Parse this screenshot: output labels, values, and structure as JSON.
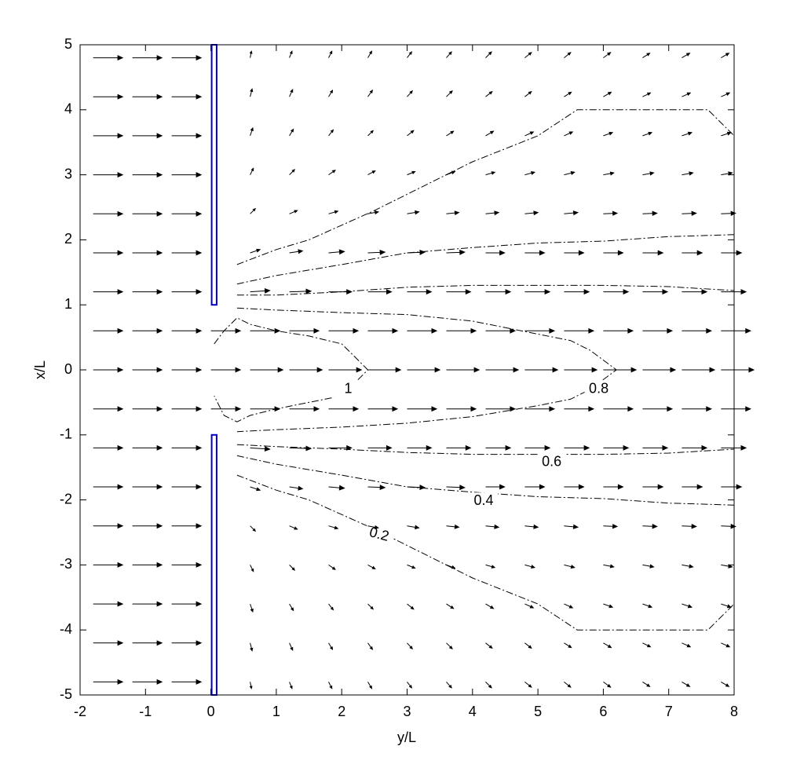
{
  "chart_data": {
    "type": "quiver",
    "xlabel": "y/L",
    "ylabel": "x/L",
    "xlim": [
      -2,
      8
    ],
    "ylim": [
      -5,
      5
    ],
    "xticks": [
      -2,
      -1,
      0,
      1,
      2,
      3,
      4,
      5,
      6,
      7,
      8
    ],
    "yticks": [
      -5,
      -4,
      -3,
      -2,
      -1,
      0,
      1,
      2,
      3,
      4,
      5
    ],
    "arrow_color": "#000000",
    "x": [
      -1.8,
      -1.2,
      -0.6,
      0,
      0.6,
      1.2,
      1.8,
      2.4,
      3.0,
      3.6,
      4.2,
      4.8,
      5.4,
      6.0,
      6.6,
      7.2,
      7.8
    ],
    "y": [
      4.8,
      4.2,
      3.6,
      3.0,
      2.4,
      1.8,
      1.2,
      0.6,
      0,
      -0.6,
      -1.2,
      -1.8,
      -2.4,
      -3.0,
      -3.6,
      -4.2,
      -4.8
    ],
    "u": [
      [
        0.45,
        0.45,
        0.45,
        0,
        0.02,
        0.04,
        0.05,
        0.06,
        0.07,
        0.08,
        0.09,
        0.1,
        0.1,
        0.11,
        0.11,
        0.12,
        0.12
      ],
      [
        0.45,
        0.45,
        0.45,
        0,
        0.03,
        0.05,
        0.06,
        0.07,
        0.08,
        0.09,
        0.1,
        0.1,
        0.11,
        0.12,
        0.12,
        0.13,
        0.13
      ],
      [
        0.45,
        0.45,
        0.45,
        0,
        0.04,
        0.06,
        0.07,
        0.08,
        0.1,
        0.11,
        0.12,
        0.13,
        0.13,
        0.14,
        0.14,
        0.15,
        0.15
      ],
      [
        0.45,
        0.45,
        0.45,
        0,
        0.05,
        0.08,
        0.1,
        0.11,
        0.12,
        0.13,
        0.14,
        0.15,
        0.16,
        0.16,
        0.17,
        0.17,
        0.17
      ],
      [
        0.45,
        0.45,
        0.45,
        0,
        0.08,
        0.12,
        0.14,
        0.16,
        0.18,
        0.19,
        0.2,
        0.2,
        0.21,
        0.21,
        0.22,
        0.22,
        0.22
      ],
      [
        0.45,
        0.45,
        0.45,
        0,
        0.15,
        0.2,
        0.24,
        0.26,
        0.27,
        0.28,
        0.29,
        0.3,
        0.3,
        0.3,
        0.31,
        0.31,
        0.31
      ],
      [
        0.45,
        0.45,
        0.45,
        0,
        0.3,
        0.33,
        0.35,
        0.36,
        0.37,
        0.37,
        0.38,
        0.38,
        0.38,
        0.38,
        0.38,
        0.38,
        0.38
      ],
      [
        0.45,
        0.45,
        0.45,
        0.45,
        0.45,
        0.45,
        0.45,
        0.45,
        0.45,
        0.45,
        0.45,
        0.45,
        0.45,
        0.45,
        0.45,
        0.45,
        0.45
      ],
      [
        0.45,
        0.45,
        0.45,
        0.45,
        0.5,
        0.5,
        0.5,
        0.5,
        0.5,
        0.5,
        0.5,
        0.5,
        0.5,
        0.5,
        0.5,
        0.5,
        0.5
      ],
      [
        0.45,
        0.45,
        0.45,
        0.45,
        0.45,
        0.45,
        0.45,
        0.45,
        0.45,
        0.45,
        0.45,
        0.45,
        0.45,
        0.45,
        0.45,
        0.45,
        0.45
      ],
      [
        0.45,
        0.45,
        0.45,
        0,
        0.3,
        0.33,
        0.35,
        0.36,
        0.37,
        0.37,
        0.38,
        0.38,
        0.38,
        0.38,
        0.38,
        0.38,
        0.38
      ],
      [
        0.45,
        0.45,
        0.45,
        0,
        0.15,
        0.2,
        0.24,
        0.26,
        0.27,
        0.28,
        0.29,
        0.3,
        0.3,
        0.3,
        0.31,
        0.31,
        0.31
      ],
      [
        0.45,
        0.45,
        0.45,
        0,
        0.08,
        0.12,
        0.14,
        0.16,
        0.18,
        0.19,
        0.2,
        0.2,
        0.21,
        0.21,
        0.22,
        0.22,
        0.22
      ],
      [
        0.45,
        0.45,
        0.45,
        0,
        0.05,
        0.08,
        0.1,
        0.11,
        0.12,
        0.13,
        0.14,
        0.15,
        0.16,
        0.16,
        0.17,
        0.17,
        0.17
      ],
      [
        0.45,
        0.45,
        0.45,
        0,
        0.04,
        0.06,
        0.07,
        0.08,
        0.1,
        0.11,
        0.12,
        0.13,
        0.13,
        0.14,
        0.14,
        0.15,
        0.15
      ],
      [
        0.45,
        0.45,
        0.45,
        0,
        0.03,
        0.05,
        0.06,
        0.07,
        0.08,
        0.09,
        0.1,
        0.1,
        0.11,
        0.12,
        0.12,
        0.13,
        0.13
      ],
      [
        0.45,
        0.45,
        0.45,
        0,
        0.02,
        0.04,
        0.05,
        0.06,
        0.07,
        0.08,
        0.09,
        0.1,
        0.1,
        0.11,
        0.11,
        0.12,
        0.12
      ]
    ],
    "v": [
      [
        0,
        0,
        0,
        0,
        0.1,
        0.1,
        0.1,
        0.1,
        0.09,
        0.09,
        0.09,
        0.08,
        0.08,
        0.08,
        0.07,
        0.07,
        0.07
      ],
      [
        0,
        0,
        0,
        0,
        0.12,
        0.11,
        0.1,
        0.1,
        0.09,
        0.09,
        0.08,
        0.08,
        0.07,
        0.07,
        0.06,
        0.06,
        0.06
      ],
      [
        0,
        0,
        0,
        0,
        0.12,
        0.1,
        0.09,
        0.08,
        0.08,
        0.07,
        0.07,
        0.06,
        0.06,
        0.05,
        0.05,
        0.05,
        0.05
      ],
      [
        0,
        0,
        0,
        0,
        0.1,
        0.08,
        0.07,
        0.06,
        0.05,
        0.05,
        0.04,
        0.04,
        0.04,
        0.03,
        0.03,
        0.03,
        0.03
      ],
      [
        0,
        0,
        0,
        0,
        0.08,
        0.05,
        0.04,
        0.03,
        0.03,
        0.02,
        0.02,
        0.02,
        0.02,
        0.01,
        0.01,
        0.01,
        0.01
      ],
      [
        0,
        0,
        0,
        0,
        0.05,
        0.03,
        0.02,
        0.01,
        0.01,
        0.01,
        0,
        0,
        0,
        0,
        0,
        0,
        0
      ],
      [
        0,
        0,
        0,
        0,
        0.02,
        0.01,
        0,
        0,
        0,
        0,
        0,
        0,
        0,
        0,
        0,
        0,
        0
      ],
      [
        0,
        0,
        0,
        0,
        0,
        0,
        0,
        0,
        0,
        0,
        0,
        0,
        0,
        0,
        0,
        0,
        0
      ],
      [
        0,
        0,
        0,
        0,
        0,
        0,
        0,
        0,
        0,
        0,
        0,
        0,
        0,
        0,
        0,
        0,
        0
      ],
      [
        0,
        0,
        0,
        0,
        0,
        0,
        0,
        0,
        0,
        0,
        0,
        0,
        0,
        0,
        0,
        0,
        0
      ],
      [
        0,
        0,
        0,
        0,
        -0.02,
        -0.01,
        0,
        0,
        0,
        0,
        0,
        0,
        0,
        0,
        0,
        0,
        0
      ],
      [
        0,
        0,
        0,
        0,
        -0.05,
        -0.03,
        -0.02,
        -0.01,
        -0.01,
        -0.01,
        0,
        0,
        0,
        0,
        0,
        0,
        0
      ],
      [
        0,
        0,
        0,
        0,
        -0.08,
        -0.05,
        -0.04,
        -0.03,
        -0.03,
        -0.02,
        -0.02,
        -0.02,
        -0.02,
        -0.01,
        -0.01,
        -0.01,
        -0.01
      ],
      [
        0,
        0,
        0,
        0,
        -0.1,
        -0.08,
        -0.07,
        -0.06,
        -0.05,
        -0.05,
        -0.04,
        -0.04,
        -0.04,
        -0.03,
        -0.03,
        -0.03,
        -0.03
      ],
      [
        0,
        0,
        0,
        0,
        -0.12,
        -0.1,
        -0.09,
        -0.08,
        -0.08,
        -0.07,
        -0.07,
        -0.06,
        -0.06,
        -0.05,
        -0.05,
        -0.05,
        -0.05
      ],
      [
        0,
        0,
        0,
        0,
        -0.12,
        -0.11,
        -0.1,
        -0.1,
        -0.09,
        -0.09,
        -0.08,
        -0.08,
        -0.07,
        -0.07,
        -0.06,
        -0.06,
        -0.06
      ],
      [
        0,
        0,
        0,
        0,
        -0.1,
        -0.1,
        -0.1,
        -0.1,
        -0.09,
        -0.09,
        -0.09,
        -0.08,
        -0.08,
        -0.08,
        -0.07,
        -0.07,
        -0.07
      ]
    ],
    "contours": [
      {
        "level": 1,
        "x": [
          0.05,
          0.2,
          0.4,
          0.6,
          1,
          1.5,
          2,
          2.2,
          2.4,
          2.2,
          2,
          1.5,
          1,
          0.6,
          0.4,
          0.2,
          0.05
        ],
        "y": [
          0.4,
          0.6,
          0.8,
          0.7,
          0.6,
          0.52,
          0.4,
          0.2,
          0,
          -0.2,
          -0.4,
          -0.5,
          -0.6,
          -0.7,
          -0.8,
          -0.7,
          -0.4
        ]
      },
      {
        "level": 0.8,
        "x": [
          0.4,
          1,
          2,
          3,
          4,
          5,
          5.5,
          5.8,
          6.2,
          5.8,
          5.5,
          5,
          4,
          3,
          2,
          1,
          0.4
        ],
        "y": [
          0.95,
          0.92,
          0.88,
          0.85,
          0.75,
          0.55,
          0.45,
          0.3,
          0,
          -0.3,
          -0.45,
          -0.55,
          -0.72,
          -0.82,
          -0.88,
          -0.92,
          -0.95
        ]
      },
      {
        "level": 0.6,
        "x": [
          0.4,
          1,
          2,
          3,
          4,
          5,
          6,
          7,
          8,
          null,
          0.4,
          1,
          2,
          3,
          4,
          5,
          6,
          7,
          8
        ],
        "y": [
          1.15,
          1.15,
          1.2,
          1.27,
          1.3,
          1.3,
          1.3,
          1.28,
          1.22,
          null,
          -1.15,
          -1.18,
          -1.22,
          -1.27,
          -1.3,
          -1.3,
          -1.3,
          -1.28,
          -1.22
        ]
      },
      {
        "level": 0.4,
        "x": [
          0.4,
          1,
          2,
          3,
          4,
          5,
          6,
          7,
          8,
          null,
          0.4,
          1,
          2,
          3,
          4,
          5,
          6,
          7,
          8
        ],
        "y": [
          1.32,
          1.45,
          1.62,
          1.8,
          1.88,
          1.95,
          1.98,
          2.05,
          2.08,
          null,
          -1.32,
          -1.45,
          -1.62,
          -1.8,
          -1.88,
          -1.95,
          -1.98,
          -2.05,
          -2.08
        ]
      },
      {
        "level": 0.2,
        "x": [
          0.4,
          1,
          1.5,
          2.5,
          3,
          4,
          5,
          5.6,
          7.6,
          8,
          null,
          0.4,
          1,
          1.5,
          2.5,
          3,
          4,
          5,
          5.6,
          7.6,
          8
        ],
        "y": [
          1.62,
          1.85,
          2.0,
          2.45,
          2.7,
          3.2,
          3.6,
          4,
          4,
          3.6,
          null,
          -1.62,
          -1.85,
          -2.0,
          -2.45,
          -2.7,
          -3.2,
          -3.6,
          -4,
          -4,
          -3.6
        ]
      }
    ]
  }
}
